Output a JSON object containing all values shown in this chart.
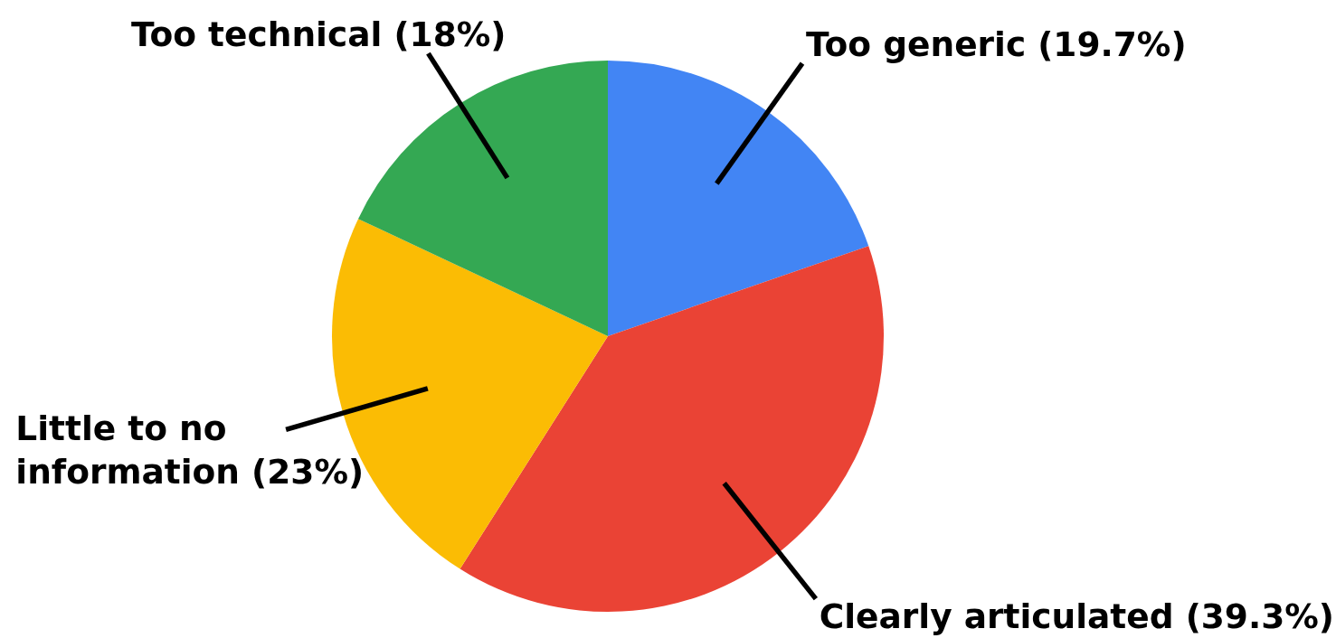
{
  "chart_data": {
    "type": "pie",
    "categories": [
      "Too generic (19.7%)",
      "Clearly articulated (39.3%)",
      "Little to no information (23%)",
      "Too technical (18%)"
    ],
    "values": [
      19.7,
      39.3,
      23,
      18
    ],
    "colors": [
      "#4285f4",
      "#ea4335",
      "#fbbc04",
      "#34a853"
    ]
  }
}
